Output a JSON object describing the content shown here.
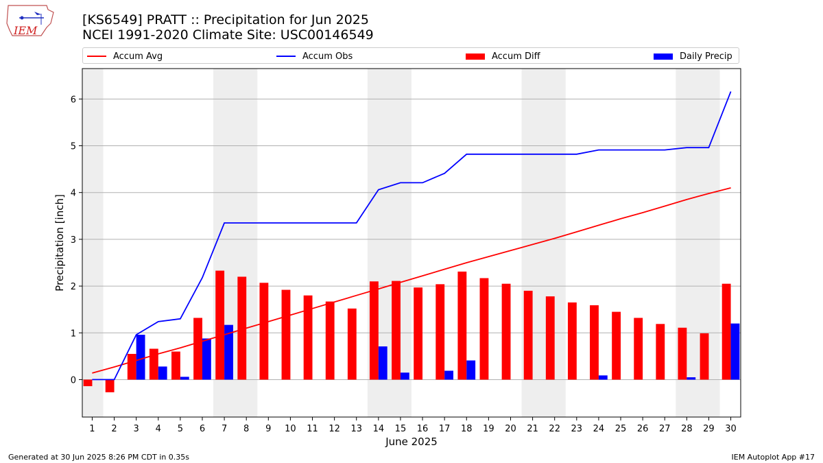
{
  "header": {
    "title_line1": "[KS6549] PRATT :: Precipitation for Jun 2025",
    "title_line2": "NCEI 1991-2020 Climate Site: USC00146549"
  },
  "logo": {
    "text": "IEM"
  },
  "footer": {
    "generated": "Generated at 30 Jun 2025 8:26 PM CDT in 0.35s",
    "app": "IEM Autoplot App #17"
  },
  "chart_data": {
    "type": "bar",
    "xlabel": "June 2025",
    "ylabel": "Precipitation [inch]",
    "ylim": [
      -0.8,
      6.65
    ],
    "yticks": [
      0,
      1,
      2,
      3,
      4,
      5,
      6
    ],
    "grid": "horizontal",
    "legend_placement": "top",
    "weekend_shading": [
      [
        1,
        1
      ],
      [
        7,
        8
      ],
      [
        14,
        15
      ],
      [
        21,
        22
      ],
      [
        28,
        29
      ]
    ],
    "days": [
      1,
      2,
      3,
      4,
      5,
      6,
      7,
      8,
      9,
      10,
      11,
      12,
      13,
      14,
      15,
      16,
      17,
      18,
      19,
      20,
      21,
      22,
      23,
      24,
      25,
      26,
      27,
      28,
      29,
      30
    ],
    "series": [
      {
        "name": "Accum Avg",
        "kind": "line",
        "color": "#ff0000",
        "values": [
          0.14,
          0.27,
          0.41,
          0.55,
          0.68,
          0.82,
          0.96,
          1.1,
          1.24,
          1.38,
          1.52,
          1.66,
          1.8,
          1.94,
          2.08,
          2.22,
          2.36,
          2.5,
          2.63,
          2.76,
          2.89,
          3.02,
          3.16,
          3.3,
          3.44,
          3.57,
          3.71,
          3.85,
          3.98,
          4.1
        ]
      },
      {
        "name": "Accum Obs",
        "kind": "line",
        "color": "#0000ff",
        "values": [
          0.0,
          0.0,
          0.96,
          1.24,
          1.3,
          2.18,
          3.35,
          3.35,
          3.35,
          3.35,
          3.35,
          3.35,
          3.35,
          4.06,
          4.21,
          4.21,
          4.41,
          4.82,
          4.82,
          4.82,
          4.82,
          4.82,
          4.82,
          4.91,
          4.91,
          4.91,
          4.91,
          4.96,
          4.96,
          6.16
        ]
      },
      {
        "name": "Accum Diff",
        "kind": "bar",
        "color": "#ff0000",
        "values": [
          -0.14,
          -0.27,
          0.55,
          0.66,
          0.6,
          1.32,
          2.33,
          2.2,
          2.07,
          1.92,
          1.8,
          1.67,
          1.52,
          2.1,
          2.11,
          1.97,
          2.04,
          2.31,
          2.17,
          2.05,
          1.9,
          1.78,
          1.65,
          1.59,
          1.45,
          1.32,
          1.19,
          1.11,
          0.99,
          2.05
        ]
      },
      {
        "name": "Daily Precip",
        "kind": "bar",
        "color": "#0000ff",
        "values": [
          0,
          0,
          0.96,
          0.28,
          0.06,
          0.88,
          1.17,
          0,
          0,
          0,
          0,
          0,
          0,
          0.71,
          0.15,
          0,
          0.19,
          0.41,
          0,
          0,
          0,
          0,
          0,
          0.09,
          0,
          0,
          0,
          0.05,
          0,
          1.2
        ]
      }
    ]
  }
}
